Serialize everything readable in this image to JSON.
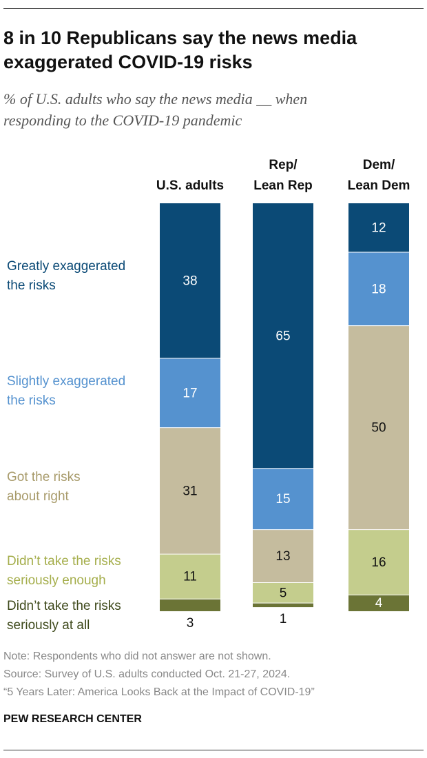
{
  "chart_data": {
    "type": "stacked-bar",
    "title": "8 in 10 Republicans say the news media exaggerated COVID-19 risks",
    "subtitle": "% of U.S. adults who say the news media __ when\nresponding to the COVID-19 pandemic",
    "categories": [
      "U.S. adults",
      "Rep/\nLean Rep",
      "Dem/\nLean Dem"
    ],
    "series": [
      {
        "name": "Greatly exaggerated\nthe risks",
        "color": "#0b4a76",
        "label_color": "#0b4a76",
        "values": [
          38,
          65,
          12
        ]
      },
      {
        "name": "Slightly exaggerated\nthe risks",
        "color": "#5592cf",
        "label_color": "#5592cf",
        "values": [
          17,
          15,
          18
        ]
      },
      {
        "name": "Got the risks\nabout right",
        "color": "#c5bc9e",
        "label_color": "#a89b6b",
        "values": [
          31,
          13,
          50
        ]
      },
      {
        "name": "Didn’t take the risks\nseriously enough",
        "color": "#c4cd8d",
        "label_color": "#a5ae4c",
        "values": [
          11,
          5,
          16
        ]
      },
      {
        "name": "Didn’t take the risks\nseriously at all",
        "color": "#6b7436",
        "label_color": "#3f4a1c",
        "values": [
          3,
          1,
          4
        ]
      }
    ],
    "note": "Note: Respondents who did not answer are not shown.",
    "source": "Source: Survey of U.S. adults conducted Oct. 21-27, 2024.",
    "report": "“5 Years Later: America Looks Back at the Impact of COVID-19”",
    "credit": "PEW RESEARCH CENTER"
  }
}
